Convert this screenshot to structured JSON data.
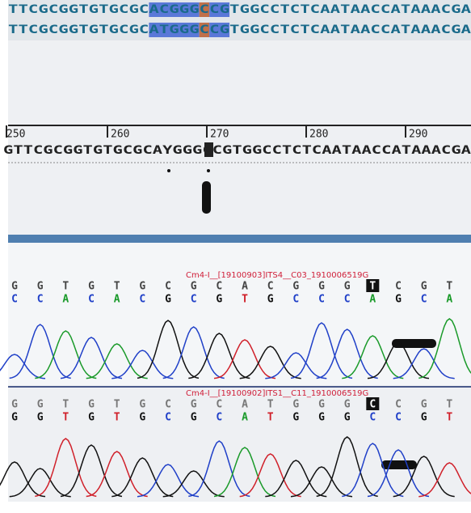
{
  "alignment": {
    "rows": [
      "TTCGCGGTGTGCGCACGGGCCGTGGCCTCTCAATAACCATAAACGA",
      "TTCGCGGTGTGCGCATGGGCCGTGGCCTCTCAATAACCATAAACGA"
    ]
  },
  "consensus": {
    "ruler": [
      250,
      260,
      270,
      280,
      290
    ],
    "sequence": "GTTCGCGGTGTGCGCAYGGGCCGTGGCCTCTCAATAACCATAAACGA"
  },
  "traces": [
    {
      "label": "Cm4-I__[19100903]ITS4__C03_1910006519G",
      "bases_top": [
        "G",
        "G",
        "T",
        "G",
        "T",
        "G",
        "C",
        "G",
        "C",
        "A",
        "C",
        "G",
        "G",
        "G",
        "T",
        "C",
        "G",
        "T"
      ],
      "bases_bottom": [
        "C",
        "C",
        "A",
        "C",
        "A",
        "C",
        "G",
        "C",
        "G",
        "T",
        "G",
        "C",
        "C",
        "C",
        "A",
        "G",
        "C",
        "A"
      ]
    },
    {
      "label": "Cm4-I__[19100902]ITS1__C11_1910006519G",
      "bases_top": [
        "G",
        "G",
        "T",
        "G",
        "T",
        "G",
        "C",
        "G",
        "C",
        "A",
        "T",
        "G",
        "G",
        "G",
        "C",
        "C",
        "G",
        "T"
      ],
      "bases_bottom": [
        "G",
        "G",
        "T",
        "G",
        "T",
        "G",
        "C",
        "G",
        "C",
        "A",
        "T",
        "G",
        "G",
        "G",
        "C",
        "C",
        "G",
        "T"
      ]
    }
  ]
}
